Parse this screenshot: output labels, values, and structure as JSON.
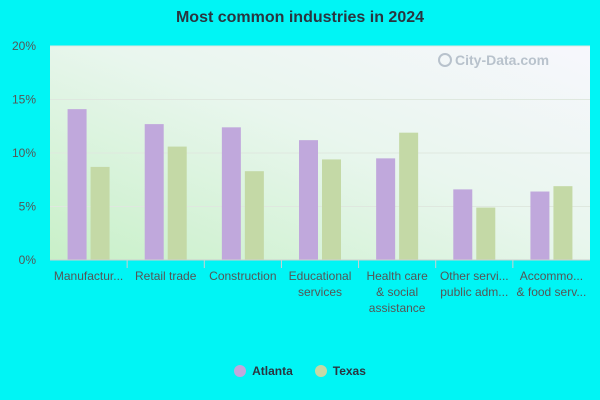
{
  "chart_data": {
    "type": "bar",
    "title": "Most common industries in 2024",
    "categories": [
      [
        "Manufactur..."
      ],
      [
        "Retail trade"
      ],
      [
        "Construction"
      ],
      [
        "Educational",
        "services"
      ],
      [
        "Health care",
        "& social",
        "assistance"
      ],
      [
        "Other servi...",
        "public adm..."
      ],
      [
        "Accommo...",
        "& food serv..."
      ]
    ],
    "series": [
      {
        "name": "Atlanta",
        "color": "#c0a8dc",
        "values": [
          14.1,
          12.7,
          12.4,
          11.2,
          9.5,
          6.6,
          6.4
        ]
      },
      {
        "name": "Texas",
        "color": "#c4d9a6",
        "values": [
          8.7,
          10.6,
          8.3,
          9.4,
          11.9,
          4.9,
          6.9
        ]
      }
    ],
    "ylim": [
      0,
      20
    ],
    "yticks": [
      "0%",
      "5%",
      "10%",
      "15%",
      "20%"
    ],
    "grid": true,
    "legend": "bottom"
  },
  "watermark": "City-Data.com",
  "watermark_icon": "magnifier-icon"
}
